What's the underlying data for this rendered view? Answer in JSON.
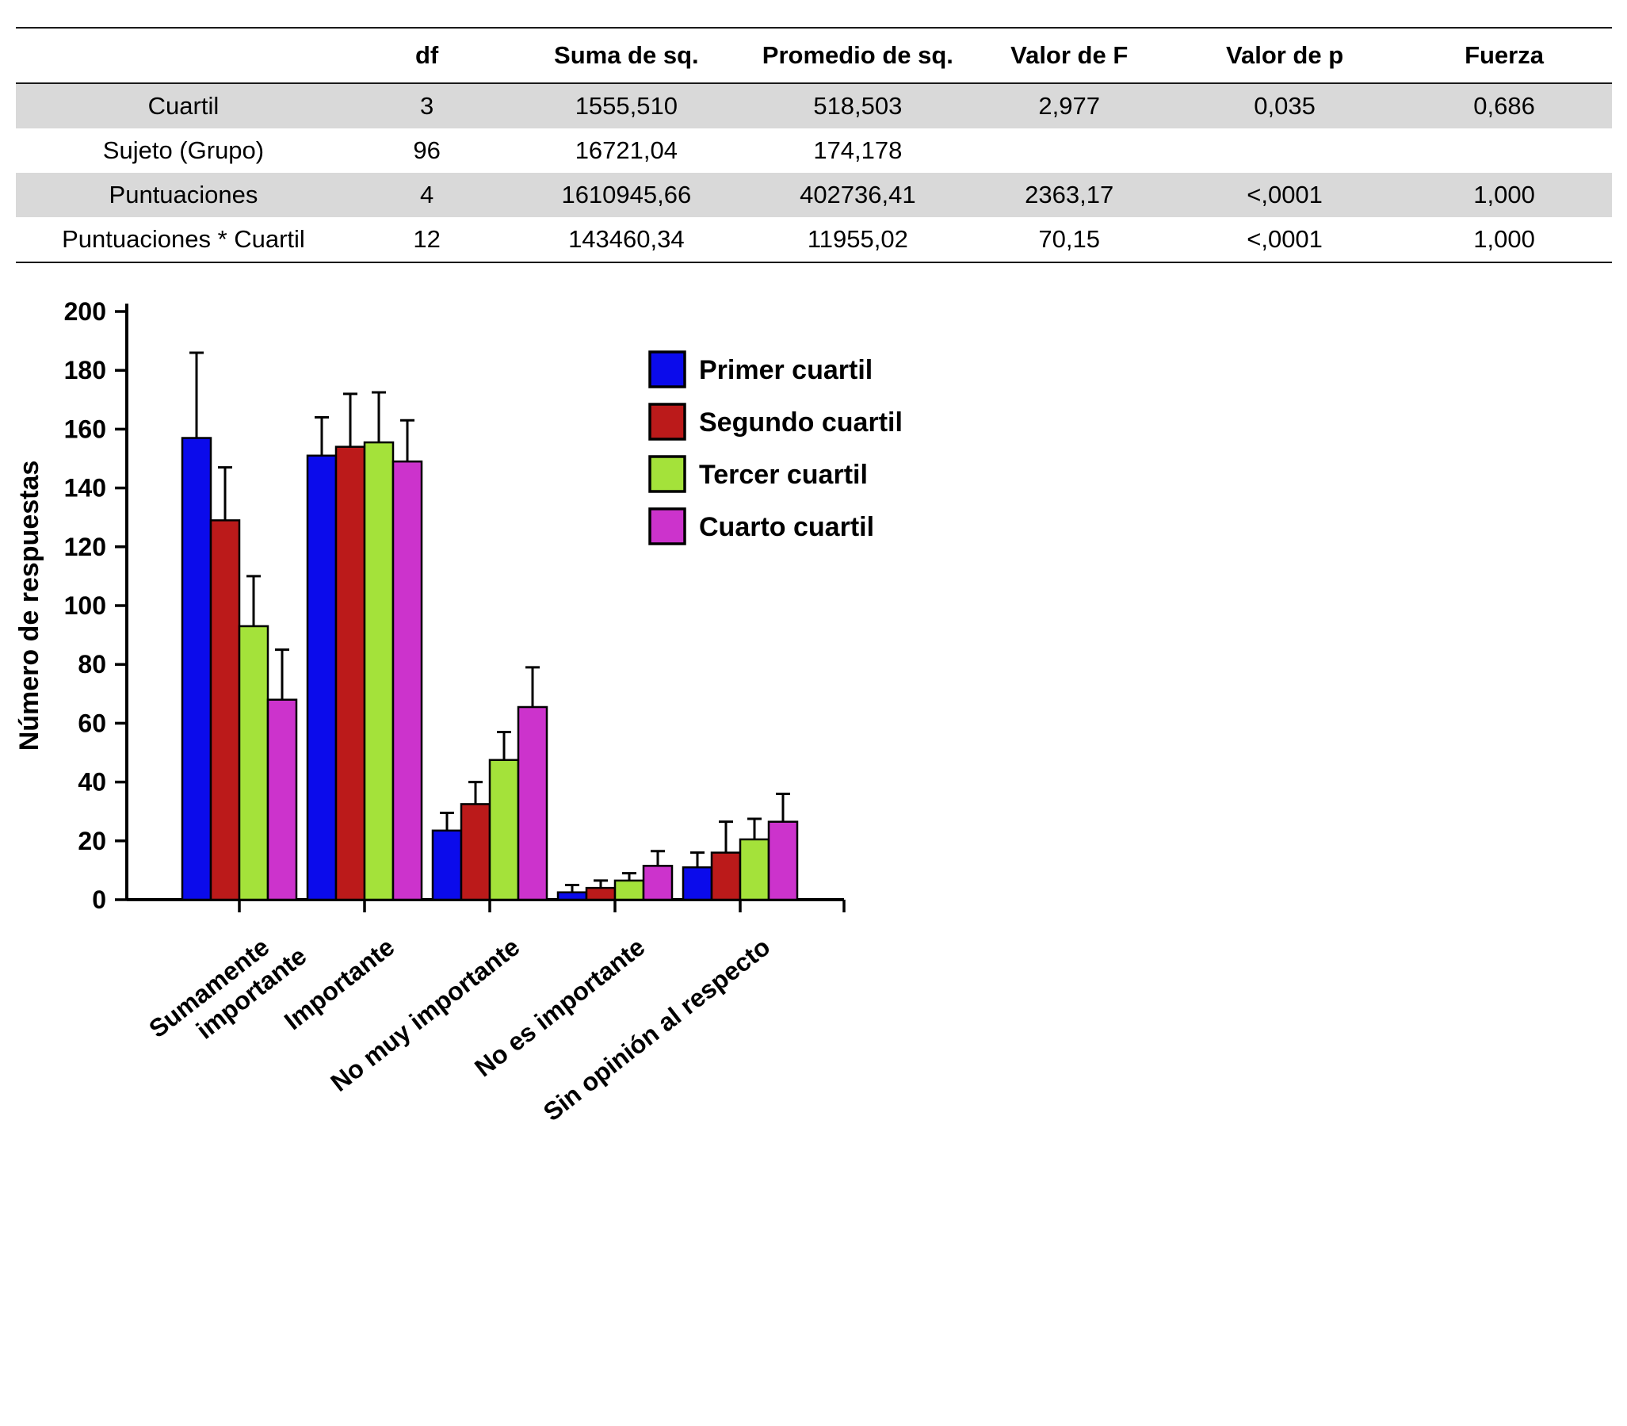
{
  "table": {
    "headers": [
      "",
      "df",
      "Suma de sq.",
      "Promedio de sq.",
      "Valor de F",
      "Valor de p",
      "Fuerza"
    ],
    "rows": [
      {
        "label": "Cuartil",
        "values": [
          "3",
          "1555,510",
          "518,503",
          "2,977",
          "0,035",
          "0,686"
        ],
        "shaded": true
      },
      {
        "label": "Sujeto (Grupo)",
        "values": [
          "96",
          "16721,04",
          "174,178",
          "",
          "",
          ""
        ],
        "shaded": false
      },
      {
        "label": "Puntuaciones",
        "values": [
          "4",
          "1610945,66",
          "402736,41",
          "2363,17",
          "<,0001",
          "1,000"
        ],
        "shaded": true
      },
      {
        "label": "Puntuaciones * Cuartil",
        "values": [
          "12",
          "143460,34",
          "11955,02",
          "70,15",
          "<,0001",
          "1,000"
        ],
        "shaded": false
      }
    ]
  },
  "chart_data": {
    "type": "bar",
    "title": "",
    "xlabel": "",
    "ylabel": "Número de respuestas",
    "ylim": [
      0,
      200
    ],
    "ytick_step": 20,
    "grid": false,
    "legend_position": "upper-right-inside",
    "categories": [
      "Sumamente\nimportante",
      "Importante",
      "No muy importante",
      "No es importante",
      "Sin opinión al respecto"
    ],
    "series": [
      {
        "name": "Primer cuartil",
        "color": "#0b0beb",
        "values": [
          157,
          151,
          23.5,
          2.5,
          11
        ],
        "errors": [
          29,
          13,
          6,
          2.5,
          5
        ]
      },
      {
        "name": "Segundo cuartil",
        "color": "#bb1a1a",
        "values": [
          129,
          154,
          32.5,
          4,
          16
        ],
        "errors": [
          18,
          18,
          7.5,
          2.5,
          10.5
        ]
      },
      {
        "name": "Tercer cuartil",
        "color": "#a4e23a",
        "values": [
          93,
          155.5,
          47.5,
          6.5,
          20.5
        ],
        "errors": [
          17,
          17,
          9.5,
          2.5,
          7
        ]
      },
      {
        "name": "Cuarto cuartil",
        "color": "#cc33cc",
        "values": [
          68,
          149,
          65.5,
          11.5,
          26.5
        ],
        "errors": [
          17,
          14,
          13.5,
          5,
          9.5
        ]
      }
    ]
  }
}
